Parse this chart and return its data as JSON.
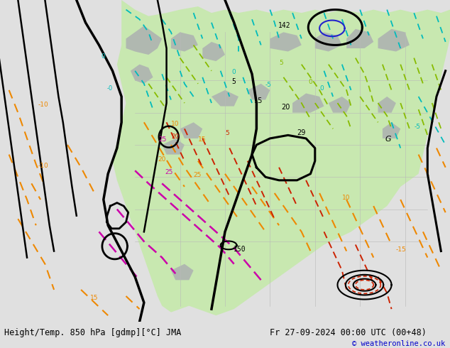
{
  "title_left": "Height/Temp. 850 hPa [gdmp][°C] JMA",
  "title_right": "Fr 27-09-2024 00:00 UTC (00+48)",
  "copyright": "© weatheronline.co.uk",
  "bg_color": "#e0e0e0",
  "ocean_color": "#e0e0e0",
  "land_green_color": "#c8e8b0",
  "land_gray_color": "#b0b8b0",
  "bottom_bar_color": "#d0d0d0",
  "black": "#000000",
  "cyan": "#00bbbb",
  "orange": "#ee8800",
  "red": "#cc2200",
  "magenta": "#cc00aa",
  "lime": "#88bb00",
  "blue": "#2222cc",
  "teal": "#00aaaa"
}
